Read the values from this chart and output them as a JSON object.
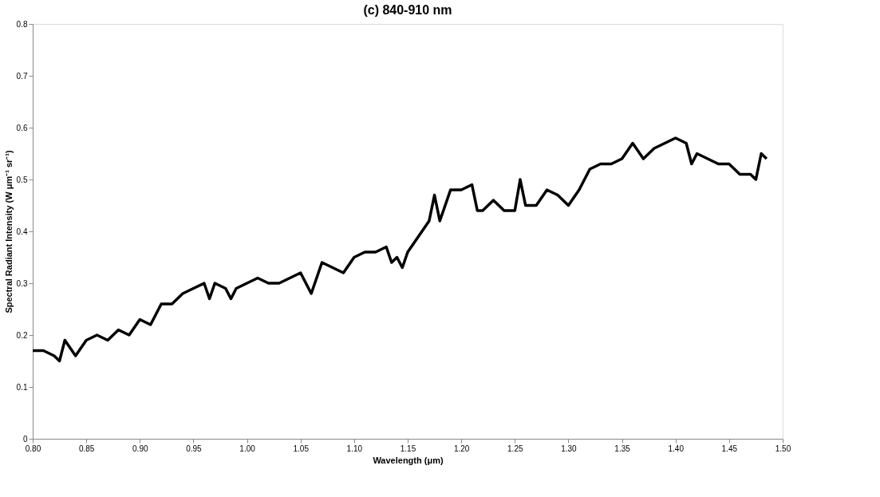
{
  "chart_data": {
    "type": "line",
    "title": "(c) 840-910 nm",
    "xlabel": "Wavelength (μm)",
    "ylabel": "Spectral Radiant Intensity (W μm⁻¹ sr⁻¹)",
    "x": [
      0.8,
      0.81,
      0.82,
      0.825,
      0.83,
      0.84,
      0.85,
      0.86,
      0.87,
      0.88,
      0.89,
      0.9,
      0.91,
      0.92,
      0.93,
      0.94,
      0.95,
      0.96,
      0.965,
      0.97,
      0.98,
      0.985,
      0.99,
      1.0,
      1.01,
      1.02,
      1.03,
      1.04,
      1.05,
      1.06,
      1.07,
      1.08,
      1.09,
      1.1,
      1.11,
      1.12,
      1.13,
      1.135,
      1.14,
      1.145,
      1.15,
      1.16,
      1.17,
      1.175,
      1.18,
      1.19,
      1.2,
      1.21,
      1.215,
      1.22,
      1.23,
      1.24,
      1.25,
      1.255,
      1.26,
      1.27,
      1.28,
      1.29,
      1.3,
      1.31,
      1.32,
      1.33,
      1.34,
      1.35,
      1.36,
      1.37,
      1.38,
      1.39,
      1.4,
      1.41,
      1.415,
      1.42,
      1.43,
      1.44,
      1.45,
      1.46,
      1.47,
      1.475,
      1.48,
      1.485
    ],
    "series": [
      {
        "color": "#000000",
        "values": [
          0.17,
          0.17,
          0.16,
          0.15,
          0.19,
          0.16,
          0.19,
          0.2,
          0.19,
          0.21,
          0.2,
          0.23,
          0.22,
          0.26,
          0.26,
          0.28,
          0.29,
          0.3,
          0.27,
          0.3,
          0.29,
          0.27,
          0.29,
          0.3,
          0.31,
          0.3,
          0.3,
          0.31,
          0.32,
          0.28,
          0.34,
          0.33,
          0.32,
          0.35,
          0.36,
          0.36,
          0.37,
          0.34,
          0.35,
          0.33,
          0.36,
          0.39,
          0.42,
          0.47,
          0.42,
          0.48,
          0.48,
          0.49,
          0.44,
          0.44,
          0.46,
          0.44,
          0.44,
          0.5,
          0.45,
          0.45,
          0.48,
          0.47,
          0.45,
          0.48,
          0.52,
          0.53,
          0.53,
          0.54,
          0.57,
          0.54,
          0.56,
          0.57,
          0.58,
          0.57,
          0.53,
          0.55,
          0.54,
          0.53,
          0.53,
          0.51,
          0.51,
          0.5,
          0.55,
          0.54
        ]
      }
    ],
    "xlim": [
      0.8,
      1.5
    ],
    "ylim": [
      0,
      0.8
    ],
    "xticks": [
      {
        "value": 0.8,
        "label": "0.80"
      },
      0.85,
      {
        "value": 0.9,
        "label": "0.90"
      },
      0.95,
      {
        "value": 1.0,
        "label": "1.00"
      },
      1.05,
      {
        "value": 1.1,
        "label": "1.10"
      },
      1.15,
      {
        "value": 1.2,
        "label": "1.20"
      },
      1.25,
      {
        "value": 1.3,
        "label": "1.30"
      },
      1.35,
      {
        "value": 1.4,
        "label": "1.40"
      },
      1.45,
      {
        "value": 1.5,
        "label": "1.50"
      }
    ],
    "yticks": [
      0,
      0.1,
      0.2,
      0.3,
      0.4,
      0.5,
      0.6,
      0.7,
      0.8
    ],
    "grid": false,
    "marker": "none",
    "line_style": "solid"
  }
}
